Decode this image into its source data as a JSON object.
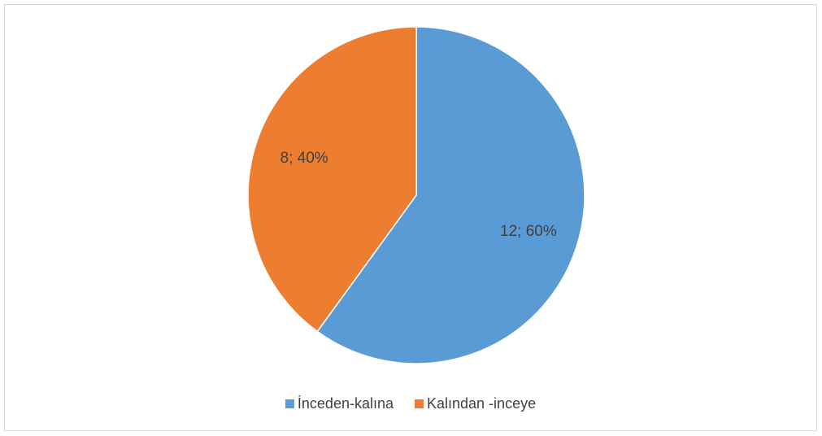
{
  "chart_data": {
    "type": "pie",
    "categories": [
      "İnceden-kalına",
      "Kalından -inceye"
    ],
    "values": [
      12,
      8
    ],
    "value_labels": [
      "12; 60%",
      "8; 40%"
    ],
    "colors": [
      "#5b9bd5",
      "#ed7d31"
    ],
    "legend": "bottom"
  }
}
